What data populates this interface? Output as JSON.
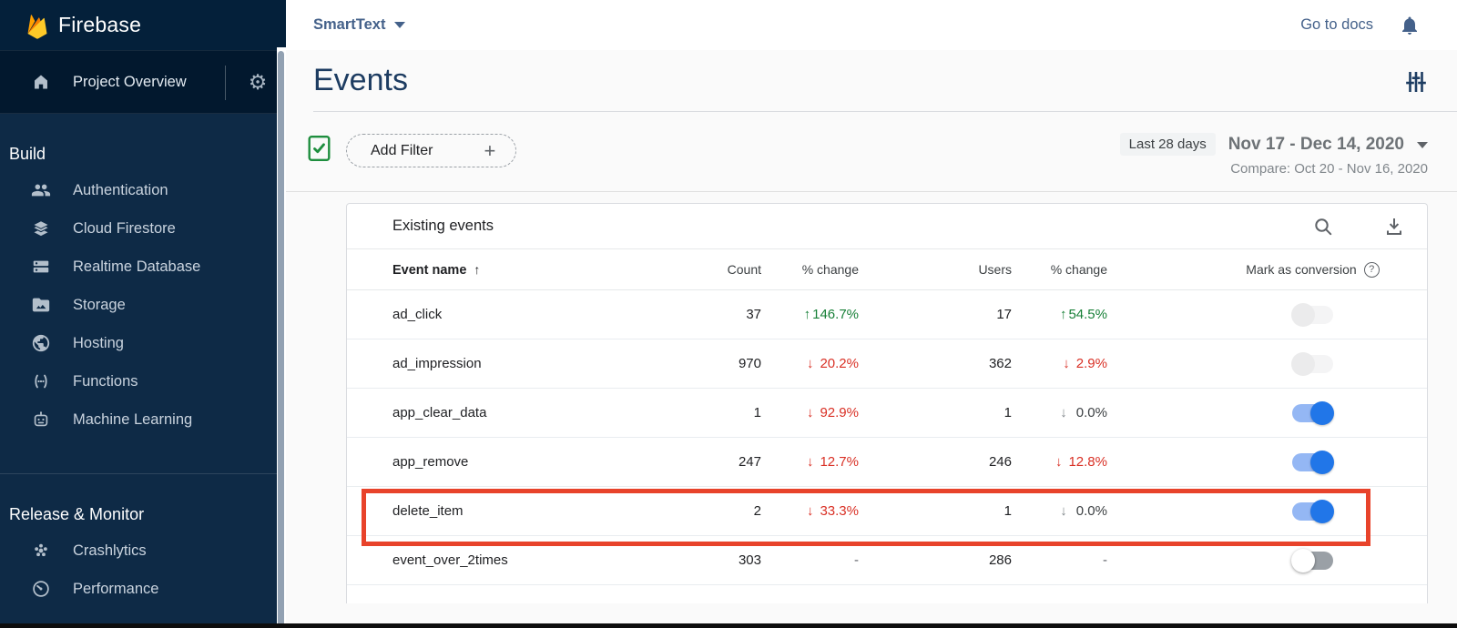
{
  "sidebar": {
    "logo_text": "Firebase",
    "project_overview": {
      "label": "Project Overview"
    },
    "sections": [
      {
        "label": "Build",
        "items": [
          {
            "icon": "users-icon",
            "label": "Authentication"
          },
          {
            "icon": "firestore-icon",
            "label": "Cloud Firestore"
          },
          {
            "icon": "database-icon",
            "label": "Realtime Database"
          },
          {
            "icon": "storage-icon",
            "label": "Storage"
          },
          {
            "icon": "globe-icon",
            "label": "Hosting"
          },
          {
            "icon": "functions-icon",
            "label": "Functions"
          },
          {
            "icon": "robot-icon",
            "label": "Machine Learning"
          }
        ]
      },
      {
        "label": "Release & Monitor",
        "items": [
          {
            "icon": "crashlytics-icon",
            "label": "Crashlytics"
          },
          {
            "icon": "speedometer-icon",
            "label": "Performance"
          }
        ]
      }
    ]
  },
  "header": {
    "project_name": "SmartText",
    "go_to_docs": "Go to docs"
  },
  "page": {
    "title": "Events"
  },
  "filter_bar": {
    "add_filter_label": "Add Filter",
    "plus": "+",
    "range_chip": "Last 28 days",
    "date_range": "Nov 17 - Dec 14, 2020",
    "compare": "Compare: Oct 20 - Nov 16, 2020"
  },
  "table": {
    "title": "Existing events",
    "columns": {
      "event_name": "Event name",
      "count": "Count",
      "pct_change": "% change",
      "users": "Users",
      "pct_change_users": "% change",
      "mark_as_conversion": "Mark as conversion"
    },
    "rows": [
      {
        "name": "ad_click",
        "count": "37",
        "count_change": {
          "dir": "up",
          "value": "146.7%"
        },
        "users": "17",
        "users_change": {
          "dir": "up",
          "value": "54.5%"
        },
        "toggle": "disabled-off",
        "highlighted": false
      },
      {
        "name": "ad_impression",
        "count": "970",
        "count_change": {
          "dir": "down",
          "value": "20.2%"
        },
        "users": "362",
        "users_change": {
          "dir": "down",
          "value": "2.9%"
        },
        "toggle": "disabled-off",
        "highlighted": false
      },
      {
        "name": "app_clear_data",
        "count": "1",
        "count_change": {
          "dir": "down",
          "value": "92.9%"
        },
        "users": "1",
        "users_change": {
          "dir": "down-gray",
          "value": "0.0%"
        },
        "toggle": "on",
        "highlighted": false
      },
      {
        "name": "app_remove",
        "count": "247",
        "count_change": {
          "dir": "down",
          "value": "12.7%"
        },
        "users": "246",
        "users_change": {
          "dir": "down",
          "value": "12.8%"
        },
        "toggle": "on",
        "highlighted": false
      },
      {
        "name": "delete_item",
        "count": "2",
        "count_change": {
          "dir": "down",
          "value": "33.3%"
        },
        "users": "1",
        "users_change": {
          "dir": "down-gray",
          "value": "0.0%"
        },
        "toggle": "on",
        "highlighted": true
      },
      {
        "name": "event_over_2times",
        "count": "303",
        "count_change": {
          "dir": "none",
          "value": "-"
        },
        "users": "286",
        "users_change": {
          "dir": "none",
          "value": "-"
        },
        "toggle": "off",
        "highlighted": false
      }
    ]
  },
  "colors": {
    "sidebar_bg": "#0e2a46",
    "sidebar_header_bg": "#04203a",
    "accent_blue": "#1a73e8",
    "positive_green": "#188038",
    "negative_red": "#d93025",
    "highlight_red": "#e8432b",
    "link_steel_blue": "#44618a",
    "title_navy": "#1d3c61"
  }
}
